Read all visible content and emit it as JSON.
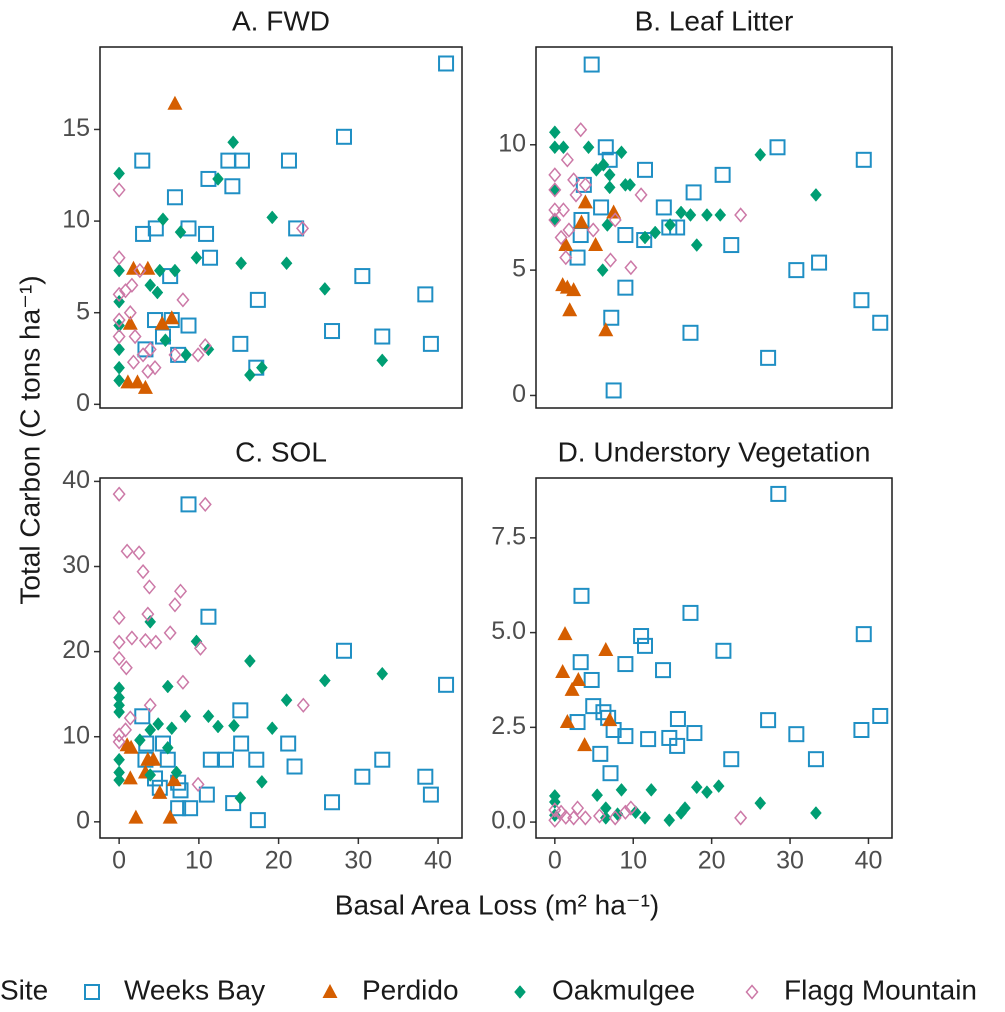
{
  "figure": {
    "x_label": "Basal Area Loss (m² ha⁻¹)",
    "y_label": "Total Carbon (C tons ha⁻¹)",
    "legend_title": "Site",
    "legend_position": "bottom"
  },
  "chart_data": [
    {
      "type": "scatter",
      "title": "A. FWD",
      "xlim": [
        -2.4,
        43.0
      ],
      "ylim": [
        -0.2,
        19.5
      ],
      "yticks": [
        0,
        5,
        10,
        15
      ],
      "series": [
        {
          "name": "Weeks Bay",
          "color": "#1f8fc4",
          "shape": "square-open",
          "x": [
            41.0,
            28.2,
            2.9,
            13.7,
            15.4,
            21.3,
            11.2,
            14.2,
            7.0,
            4.6,
            3.0,
            8.7,
            10.9,
            22.2,
            11.4,
            6.4,
            30.5,
            17.4,
            38.4,
            4.5,
            6.6,
            8.7,
            26.7,
            5.5,
            33.0,
            15.2,
            39.1,
            3.3,
            7.4,
            17.2
          ],
          "values": [
            18.6,
            14.6,
            13.3,
            13.3,
            13.3,
            13.3,
            12.3,
            11.9,
            11.3,
            9.6,
            9.3,
            9.6,
            9.3,
            9.6,
            8.0,
            7.0,
            7.0,
            5.7,
            6.0,
            4.6,
            4.6,
            4.3,
            4.0,
            3.7,
            3.7,
            3.3,
            3.3,
            3.0,
            2.7,
            2.0
          ]
        },
        {
          "name": "Perdido",
          "color": "#d55e00",
          "shape": "triangle",
          "x": [
            7.0,
            1.8,
            3.6,
            1.4,
            5.4,
            6.6,
            1.1,
            2.3,
            3.3
          ],
          "values": [
            16.4,
            7.4,
            7.4,
            4.4,
            4.4,
            4.7,
            1.2,
            1.2,
            0.9
          ]
        },
        {
          "name": "Oakmulgee",
          "color": "#009e73",
          "shape": "diamond",
          "x": [
            0,
            14.3,
            12.4,
            5.5,
            7.7,
            9.7,
            19.2,
            0,
            5.1,
            7.0,
            15.3,
            21.0,
            25.8,
            0,
            3.9,
            4.8,
            0,
            5.8,
            11.2,
            8.4,
            0,
            0,
            16.4,
            17.9,
            33.0,
            0
          ],
          "values": [
            12.6,
            14.3,
            12.3,
            10.1,
            9.4,
            8.0,
            10.2,
            7.3,
            7.3,
            7.3,
            7.7,
            7.7,
            6.3,
            5.6,
            6.5,
            6.1,
            3.0,
            3.5,
            3.0,
            2.7,
            2.0,
            1.3,
            1.6,
            2.0,
            2.4,
            4.3
          ]
        },
        {
          "name": "Flagg Mountain",
          "color": "#cc79a7",
          "shape": "diamond-open",
          "x": [
            0,
            0,
            0,
            0.8,
            1.6,
            2.6,
            0,
            1.4,
            0,
            2.0,
            3.9,
            3.0,
            4.5,
            3.6,
            7.0,
            8.0,
            9.9,
            10.8,
            23.0,
            1.8
          ],
          "values": [
            11.7,
            8.0,
            6.0,
            6.2,
            6.5,
            7.3,
            4.6,
            5.0,
            3.7,
            3.7,
            3.0,
            2.7,
            2.0,
            1.8,
            2.7,
            5.7,
            2.7,
            3.2,
            9.6,
            2.3
          ]
        }
      ]
    },
    {
      "type": "scatter",
      "title": "B. Leaf Litter",
      "xlim": [
        -2.4,
        43.0
      ],
      "ylim": [
        -0.5,
        13.9
      ],
      "yticks": [
        0,
        5,
        10
      ],
      "series": [
        {
          "name": "Weeks Bay",
          "color": "#1f8fc4",
          "shape": "square-open",
          "x": [
            4.7,
            6.5,
            7.0,
            28.4,
            39.4,
            11.5,
            3.7,
            21.4,
            17.7,
            5.9,
            13.9,
            3.4,
            14.6,
            15.6,
            3.3,
            9.0,
            11.4,
            2.9,
            22.5,
            30.8,
            33.7,
            9.0,
            7.2,
            39.1,
            41.5,
            17.3,
            27.2,
            7.5
          ],
          "values": [
            13.2,
            9.9,
            9.4,
            9.9,
            9.4,
            9.0,
            8.4,
            8.8,
            8.1,
            7.5,
            7.5,
            7.0,
            6.7,
            6.7,
            6.4,
            6.4,
            6.2,
            5.5,
            6.0,
            5.0,
            5.3,
            4.3,
            3.1,
            3.8,
            2.9,
            2.5,
            1.5,
            0.2
          ]
        },
        {
          "name": "Perdido",
          "color": "#d55e00",
          "shape": "triangle",
          "x": [
            3.9,
            3.4,
            7.5,
            1.4,
            5.2,
            1.0,
            1.6,
            2.4,
            1.9,
            6.5
          ],
          "values": [
            7.7,
            6.9,
            7.3,
            6.0,
            6.0,
            4.4,
            4.3,
            4.2,
            3.4,
            2.6
          ]
        },
        {
          "name": "Oakmulgee",
          "color": "#009e73",
          "shape": "diamond",
          "x": [
            0,
            0,
            1.1,
            4.3,
            6.2,
            8.5,
            26.2,
            5.3,
            7.0,
            9.6,
            0,
            9.0,
            7.0,
            0,
            16.1,
            17.3,
            19.4,
            21.1,
            33.3,
            6.7,
            11.5,
            12.8,
            14.7,
            6.1,
            18.1
          ],
          "values": [
            10.5,
            9.9,
            9.9,
            9.9,
            9.2,
            9.7,
            9.6,
            9.0,
            8.8,
            8.4,
            8.2,
            8.4,
            8.3,
            7.0,
            7.3,
            7.2,
            7.2,
            7.2,
            8.0,
            6.8,
            6.3,
            6.5,
            6.8,
            5.0,
            6.0
          ]
        },
        {
          "name": "Flagg Mountain",
          "color": "#cc79a7",
          "shape": "diamond-open",
          "x": [
            0,
            0,
            0,
            0,
            3.3,
            1.6,
            3.9,
            2.4,
            2.7,
            1.1,
            1.8,
            0.8,
            4.9,
            7.7,
            11.0,
            23.7,
            9.7,
            1.4,
            7.1
          ],
          "values": [
            8.8,
            8.2,
            7.4,
            7.0,
            10.6,
            9.4,
            8.4,
            8.6,
            8.0,
            7.4,
            6.6,
            6.3,
            6.6,
            7.0,
            8.0,
            7.2,
            5.1,
            5.5,
            5.4
          ]
        }
      ]
    },
    {
      "type": "scatter",
      "title": "C. SOL",
      "xlim": [
        -2.4,
        43.0
      ],
      "ylim": [
        -1.9,
        40.4
      ],
      "xticks": [
        0,
        10,
        20,
        30,
        40
      ],
      "yticks": [
        0,
        10,
        20,
        30,
        40
      ],
      "series": [
        {
          "name": "Weeks Bay",
          "color": "#1f8fc4",
          "shape": "square-open",
          "x": [
            8.7,
            11.2,
            28.2,
            41.0,
            15.2,
            2.9,
            3.4,
            5.5,
            21.2,
            15.3,
            11.5,
            13.4,
            17.2,
            22.0,
            33.0,
            3.3,
            6.1,
            4.5,
            30.5,
            38.4,
            5.1,
            7.4,
            7.7,
            11.0,
            39.1,
            14.3,
            26.7,
            7.4,
            8.9,
            17.4
          ],
          "values": [
            37.3,
            24.1,
            20.1,
            16.1,
            13.1,
            12.4,
            9.2,
            9.2,
            9.2,
            9.2,
            7.3,
            7.3,
            7.3,
            6.5,
            7.3,
            7.3,
            7.3,
            5.1,
            5.3,
            5.3,
            4.0,
            4.6,
            3.7,
            3.2,
            3.2,
            2.2,
            2.3,
            1.6,
            1.6,
            0.2
          ]
        },
        {
          "name": "Perdido",
          "color": "#d55e00",
          "shape": "triangle",
          "x": [
            1.0,
            1.5,
            3.6,
            4.3,
            3.3,
            6.9,
            1.4,
            5.1,
            2.1,
            6.4
          ],
          "values": [
            9.0,
            8.7,
            7.3,
            7.3,
            5.8,
            4.9,
            5.1,
            3.4,
            0.5,
            0.5
          ]
        },
        {
          "name": "Oakmulgee",
          "color": "#009e73",
          "shape": "diamond",
          "x": [
            3.9,
            9.7,
            16.4,
            25.8,
            33.0,
            6.1,
            0,
            0,
            0,
            0,
            21.0,
            11.2,
            8.3,
            12.4,
            14.4,
            19.2,
            4.9,
            6.6,
            3.9,
            2.6,
            6.1,
            0,
            0,
            0,
            3.9,
            15.2,
            17.9,
            7.2
          ],
          "values": [
            23.5,
            21.2,
            18.9,
            16.6,
            17.4,
            15.9,
            15.7,
            14.6,
            13.7,
            12.9,
            14.3,
            12.4,
            12.4,
            11.2,
            11.3,
            11.0,
            11.5,
            11.0,
            10.8,
            9.6,
            8.7,
            7.3,
            5.8,
            4.9,
            5.5,
            2.8,
            4.7,
            5.8
          ]
        },
        {
          "name": "Flagg Mountain",
          "color": "#cc79a7",
          "shape": "diamond-open",
          "x": [
            0,
            10.8,
            1.0,
            2.5,
            3.0,
            3.8,
            7.7,
            7.0,
            0,
            3.6,
            0,
            1.6,
            3.3,
            4.6,
            6.4,
            10.2,
            0,
            0.9,
            8.0,
            3.9,
            23.1,
            0,
            0,
            1.4,
            9.9,
            0.8
          ],
          "values": [
            38.5,
            37.3,
            31.8,
            31.6,
            29.4,
            27.6,
            27.1,
            25.5,
            24.0,
            24.4,
            21.1,
            21.6,
            21.3,
            21.1,
            22.2,
            20.4,
            19.2,
            18.1,
            16.4,
            13.7,
            13.7,
            10.2,
            9.4,
            12.2,
            4.4,
            10.8
          ]
        }
      ]
    },
    {
      "type": "scatter",
      "title": "D. Understory Vegetation",
      "xlim": [
        -2.4,
        43.0
      ],
      "ylim": [
        -0.42,
        9.08
      ],
      "xticks": [
        0,
        10,
        20,
        30,
        40
      ],
      "yticks": [
        {
          "value": 0,
          "label": "0.0"
        },
        {
          "value": 2.5,
          "label": "2.5"
        },
        {
          "value": 5,
          "label": "5.0"
        },
        {
          "value": 7.5,
          "label": "7.5"
        }
      ],
      "series": [
        {
          "name": "Weeks Bay",
          "color": "#1f8fc4",
          "shape": "square-open",
          "x": [
            28.5,
            3.4,
            17.3,
            11.0,
            39.4,
            11.5,
            3.3,
            9.0,
            21.5,
            13.8,
            4.7,
            4.9,
            2.9,
            6.2,
            6.8,
            7.5,
            27.2,
            15.7,
            5.8,
            9.0,
            11.9,
            14.6,
            15.6,
            17.8,
            30.8,
            39.1,
            41.5,
            22.5,
            33.3,
            7.1
          ],
          "values": [
            8.66,
            5.97,
            5.52,
            4.91,
            4.96,
            4.65,
            4.22,
            4.17,
            4.52,
            4.01,
            3.75,
            3.06,
            2.64,
            2.9,
            2.75,
            2.43,
            2.69,
            2.72,
            1.8,
            2.27,
            2.19,
            2.22,
            2.01,
            2.35,
            2.32,
            2.43,
            2.8,
            1.66,
            1.66,
            1.29
          ]
        },
        {
          "name": "Perdido",
          "color": "#d55e00",
          "shape": "triangle",
          "x": [
            1.3,
            1.0,
            6.5,
            3.0,
            2.2,
            1.6,
            7.0,
            3.8
          ],
          "values": [
            4.96,
            3.96,
            4.54,
            3.75,
            3.49,
            2.64,
            2.69,
            2.03
          ]
        },
        {
          "name": "Oakmulgee",
          "color": "#009e73",
          "shape": "diamond",
          "x": [
            0,
            0,
            5.4,
            8.5,
            12.3,
            18.1,
            19.4,
            20.9,
            26.2,
            33.3,
            6.5,
            8.0,
            10.3,
            14.6,
            16.1,
            16.6,
            11.5,
            6.5,
            0
          ],
          "values": [
            0.69,
            0.53,
            0.71,
            0.85,
            0.85,
            0.92,
            0.79,
            0.95,
            0.5,
            0.24,
            0.37,
            0.21,
            0.26,
            0.05,
            0.24,
            0.37,
            0.11,
            0.11,
            0.18
          ]
        },
        {
          "name": "Flagg Mountain",
          "color": "#cc79a7",
          "shape": "diamond-open",
          "x": [
            0,
            0,
            1.4,
            2.9,
            3.9,
            5.7,
            7.7,
            9.0,
            9.7,
            23.7,
            2.4,
            0.8
          ],
          "values": [
            0.32,
            0.05,
            0.13,
            0.37,
            0.11,
            0.16,
            0.11,
            0.26,
            0.37,
            0.11,
            0.11,
            0.26
          ]
        }
      ]
    }
  ]
}
